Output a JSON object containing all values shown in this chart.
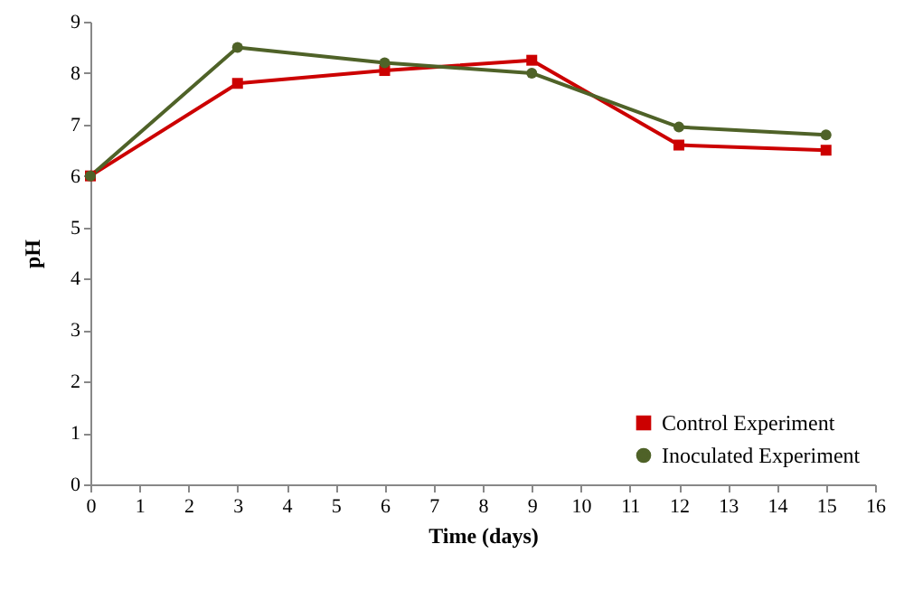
{
  "chart_data": {
    "type": "line",
    "xlabel": "Time (days)",
    "ylabel": "pH",
    "x": [
      0,
      3,
      6,
      9,
      12,
      15
    ],
    "series": [
      {
        "name": "Control Experiment",
        "color": "#cc0000",
        "marker": "square",
        "values": [
          6.0,
          7.8,
          8.05,
          8.25,
          6.6,
          6.5
        ]
      },
      {
        "name": "Inoculated Experiment",
        "color": "#4f6228",
        "marker": "circle",
        "values": [
          6.0,
          8.5,
          8.2,
          8.0,
          6.95,
          6.8
        ]
      }
    ],
    "xlim": [
      0,
      16
    ],
    "xticks": [
      0,
      1,
      2,
      3,
      4,
      5,
      6,
      7,
      8,
      9,
      10,
      11,
      12,
      13,
      14,
      15,
      16
    ],
    "ylim": [
      0,
      9
    ],
    "yticks": [
      0,
      1,
      2,
      3,
      4,
      5,
      6,
      7,
      8,
      9
    ],
    "grid": false,
    "legend": "bottom right"
  }
}
